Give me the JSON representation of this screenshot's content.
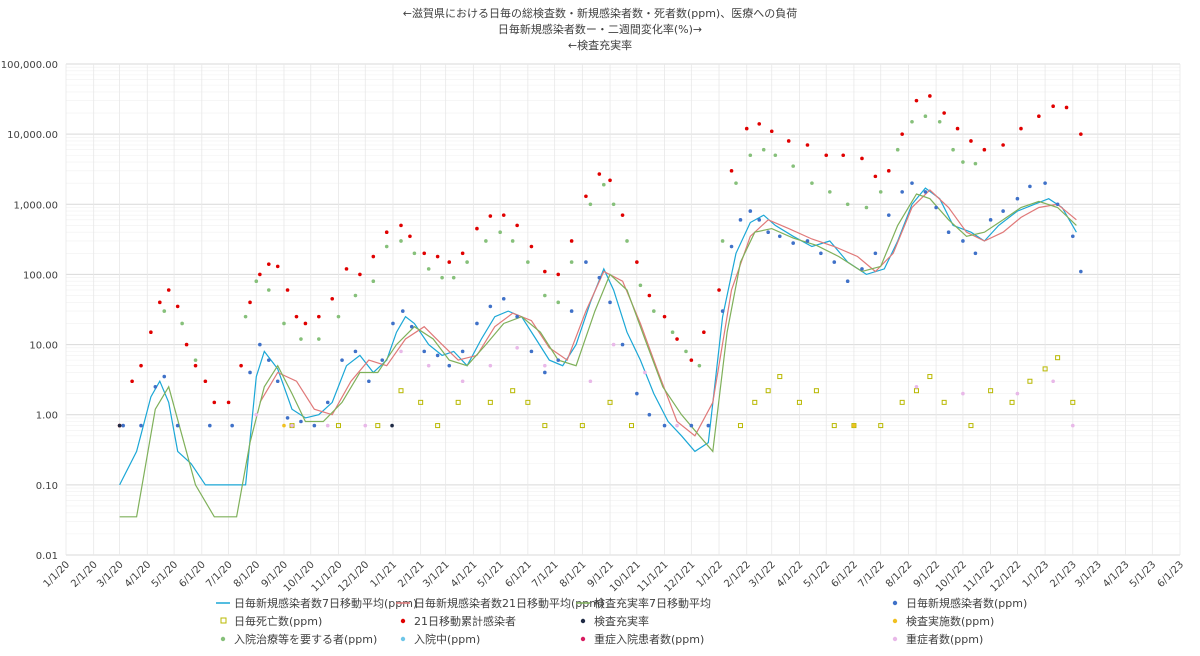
{
  "chart_data": {
    "type": "line",
    "title_lines": [
      "←滋賀県における日毎の総検査数・新規感染者数・死者数(ppm)、医療への負荷",
      "日毎新規感染者数ー・二週間変化率(%)→",
      "←検査充実率"
    ],
    "y_scale": "log",
    "ylim": [
      0.01,
      100000
    ],
    "y_ticks": [
      "0.01",
      "0.10",
      "1.00",
      "10.00",
      "100.00",
      "1,000.00",
      "10,000.00",
      "100,000.00"
    ],
    "x_ticks": [
      "1/1/20",
      "2/1/20",
      "3/1/20",
      "4/1/20",
      "5/1/20",
      "6/1/20",
      "7/1/20",
      "8/1/20",
      "9/1/20",
      "10/1/20",
      "11/1/20",
      "12/1/20",
      "1/1/21",
      "2/1/21",
      "3/1/21",
      "4/1/21",
      "5/1/21",
      "6/1/21",
      "7/1/21",
      "8/1/21",
      "9/1/21",
      "10/1/21",
      "11/1/21",
      "12/1/21",
      "1/1/22",
      "2/1/22",
      "3/1/22",
      "4/1/22",
      "5/1/22",
      "6/1/22",
      "7/1/22",
      "8/1/22",
      "9/1/22",
      "10/1/22",
      "11/1/22",
      "12/1/22",
      "1/1/23",
      "2/1/23",
      "3/1/23",
      "4/1/23",
      "5/1/23",
      "6/1/23"
    ],
    "grid": true,
    "legend_position": "bottom",
    "series": [
      {
        "name": "日毎新規感染者数7日移動平均(ppm)",
        "style": "line",
        "color": "#1ba7d6",
        "x": [
          "2020-03-01",
          "2020-03-20",
          "2020-04-05",
          "2020-04-15",
          "2020-04-25",
          "2020-05-05",
          "2020-05-20",
          "2020-06-05",
          "2020-07-20",
          "2020-08-01",
          "2020-08-10",
          "2020-08-25",
          "2020-09-10",
          "2020-09-25",
          "2020-10-10",
          "2020-10-25",
          "2020-11-10",
          "2020-11-25",
          "2020-12-10",
          "2020-12-25",
          "2021-01-05",
          "2021-01-15",
          "2021-01-25",
          "2021-02-10",
          "2021-02-25",
          "2021-03-10",
          "2021-03-25",
          "2021-04-10",
          "2021-04-25",
          "2021-05-10",
          "2021-05-25",
          "2021-06-10",
          "2021-06-25",
          "2021-07-10",
          "2021-07-25",
          "2021-08-10",
          "2021-08-25",
          "2021-09-05",
          "2021-09-20",
          "2021-10-05",
          "2021-10-20",
          "2021-11-05",
          "2021-11-20",
          "2021-12-05",
          "2021-12-20",
          "2022-01-05",
          "2022-01-20",
          "2022-02-05",
          "2022-02-20",
          "2022-03-05",
          "2022-03-25",
          "2022-04-15",
          "2022-05-05",
          "2022-05-25",
          "2022-06-15",
          "2022-07-05",
          "2022-07-20",
          "2022-08-05",
          "2022-08-20",
          "2022-09-05",
          "2022-09-20",
          "2022-10-10",
          "2022-10-25",
          "2022-11-10",
          "2022-12-01",
          "2022-12-20",
          "2023-01-05",
          "2023-01-20",
          "2023-02-05"
        ],
        "values": [
          0.1,
          0.3,
          1.8,
          3.0,
          1.5,
          0.3,
          0.2,
          0.1,
          0.1,
          3.5,
          8,
          4.5,
          1.2,
          0.9,
          1.0,
          1.5,
          5,
          7,
          4,
          6,
          15,
          25,
          20,
          10,
          7,
          8,
          5,
          12,
          25,
          30,
          25,
          12,
          6,
          5,
          10,
          40,
          120,
          60,
          15,
          6,
          2,
          0.8,
          0.5,
          0.3,
          0.4,
          25,
          200,
          550,
          700,
          500,
          350,
          250,
          300,
          150,
          100,
          120,
          300,
          1000,
          1700,
          1200,
          500,
          400,
          300,
          500,
          800,
          1000,
          1200,
          900,
          400
        ]
      },
      {
        "name": "日毎新規感染者数21日移動平均(ppm)",
        "style": "line",
        "color": "#e07979",
        "x": [
          "2020-08-05",
          "2020-08-25",
          "2020-09-15",
          "2020-10-05",
          "2020-10-25",
          "2020-11-15",
          "2020-12-05",
          "2020-12-25",
          "2021-01-15",
          "2021-02-05",
          "2021-02-25",
          "2021-03-15",
          "2021-04-05",
          "2021-04-25",
          "2021-05-15",
          "2021-06-05",
          "2021-06-25",
          "2021-07-15",
          "2021-08-05",
          "2021-08-25",
          "2021-09-15",
          "2021-10-05",
          "2021-10-25",
          "2021-11-15",
          "2021-12-05",
          "2021-12-25",
          "2022-01-15",
          "2022-02-05",
          "2022-02-25",
          "2022-03-20",
          "2022-04-15",
          "2022-05-10",
          "2022-06-05",
          "2022-06-25",
          "2022-07-15",
          "2022-08-05",
          "2022-08-25",
          "2022-09-15",
          "2022-10-05",
          "2022-10-25",
          "2022-11-15",
          "2022-12-05",
          "2022-12-25",
          "2023-01-15",
          "2023-02-05"
        ],
        "values": [
          1.5,
          4,
          3,
          1.2,
          1.0,
          3,
          6,
          5,
          12,
          18,
          10,
          6,
          7,
          18,
          28,
          22,
          9,
          6,
          30,
          110,
          80,
          20,
          4,
          0.8,
          0.5,
          1.5,
          60,
          350,
          600,
          450,
          320,
          250,
          180,
          110,
          200,
          900,
          1600,
          900,
          400,
          300,
          400,
          650,
          900,
          1000,
          600
        ]
      },
      {
        "name": "検査充実率7日移動平均",
        "style": "line",
        "color": "#7fb05a",
        "x": [
          "2020-03-01",
          "2020-03-20",
          "2020-04-10",
          "2020-04-25",
          "2020-05-10",
          "2020-05-25",
          "2020-06-15",
          "2020-07-10",
          "2020-07-25",
          "2020-08-10",
          "2020-08-25",
          "2020-09-10",
          "2020-09-25",
          "2020-10-15",
          "2020-11-05",
          "2020-11-25",
          "2020-12-15",
          "2021-01-05",
          "2021-01-25",
          "2021-02-15",
          "2021-03-05",
          "2021-03-25",
          "2021-04-15",
          "2021-05-05",
          "2021-05-25",
          "2021-06-15",
          "2021-07-05",
          "2021-07-25",
          "2021-08-15",
          "2021-09-01",
          "2021-09-20",
          "2021-10-10",
          "2021-10-30",
          "2021-11-20",
          "2021-12-10",
          "2021-12-25",
          "2022-01-10",
          "2022-01-25",
          "2022-02-10",
          "2022-03-01",
          "2022-03-25",
          "2022-04-20",
          "2022-05-15",
          "2022-06-10",
          "2022-07-01",
          "2022-07-20",
          "2022-08-10",
          "2022-08-25",
          "2022-09-15",
          "2022-10-05",
          "2022-10-25",
          "2022-11-15",
          "2022-12-05",
          "2022-12-25",
          "2023-01-15",
          "2023-02-05"
        ],
        "values": [
          0.035,
          0.035,
          1.2,
          2.5,
          0.5,
          0.1,
          0.035,
          0.035,
          0.4,
          2.5,
          5,
          2,
          0.8,
          0.8,
          1.5,
          4,
          4,
          10,
          18,
          12,
          6,
          5,
          10,
          20,
          25,
          15,
          6,
          5,
          30,
          100,
          60,
          12,
          2.5,
          1.0,
          0.5,
          0.3,
          15,
          150,
          400,
          450,
          330,
          260,
          180,
          110,
          130,
          500,
          1400,
          1200,
          600,
          350,
          400,
          600,
          900,
          1100,
          900,
          500
        ]
      },
      {
        "name": "日毎新規感染者数(ppm)",
        "style": "markers",
        "color": "#3f71c8",
        "x": [
          "2020-03-05",
          "2020-03-25",
          "2020-04-10",
          "2020-04-20",
          "2020-05-05",
          "2020-06-10",
          "2020-07-05",
          "2020-07-25",
          "2020-08-05",
          "2020-08-15",
          "2020-08-25",
          "2020-09-05",
          "2020-09-20",
          "2020-10-05",
          "2020-10-20",
          "2020-11-05",
          "2020-11-20",
          "2020-12-05",
          "2020-12-20",
          "2021-01-01",
          "2021-01-12",
          "2021-01-22",
          "2021-02-05",
          "2021-02-20",
          "2021-03-05",
          "2021-03-20",
          "2021-04-05",
          "2021-04-20",
          "2021-05-05",
          "2021-05-20",
          "2021-06-05",
          "2021-06-20",
          "2021-07-05",
          "2021-07-20",
          "2021-08-05",
          "2021-08-20",
          "2021-09-01",
          "2021-09-15",
          "2021-10-01",
          "2021-10-15",
          "2021-11-01",
          "2021-12-01",
          "2021-12-20",
          "2022-01-05",
          "2022-01-15",
          "2022-01-25",
          "2022-02-05",
          "2022-02-15",
          "2022-02-25",
          "2022-03-10",
          "2022-03-25",
          "2022-04-10",
          "2022-04-25",
          "2022-05-10",
          "2022-05-25",
          "2022-06-10",
          "2022-06-25",
          "2022-07-10",
          "2022-07-25",
          "2022-08-05",
          "2022-08-20",
          "2022-09-01",
          "2022-09-15",
          "2022-10-01",
          "2022-10-15",
          "2022-11-01",
          "2022-11-15",
          "2022-12-01",
          "2022-12-15",
          "2023-01-01",
          "2023-01-15",
          "2023-02-01",
          "2023-02-10"
        ],
        "values": [
          0.7,
          0.7,
          2.5,
          3.5,
          0.7,
          0.7,
          0.7,
          4,
          10,
          6,
          3,
          0.9,
          0.8,
          0.7,
          1.5,
          6,
          8,
          3,
          6,
          20,
          30,
          18,
          8,
          7,
          5,
          8,
          20,
          35,
          45,
          25,
          8,
          4,
          6,
          30,
          150,
          90,
          40,
          10,
          2,
          1,
          0.7,
          0.7,
          0.7,
          30,
          250,
          600,
          800,
          600,
          400,
          350,
          280,
          300,
          200,
          150,
          80,
          120,
          200,
          700,
          1500,
          2000,
          1500,
          900,
          400,
          300,
          200,
          600,
          800,
          1200,
          1800,
          2000,
          1000,
          350,
          110
        ]
      },
      {
        "name": "日毎死亡数(ppm)",
        "style": "squares",
        "color": "#b8b800",
        "x": [
          "2020-09-10",
          "2020-11-01",
          "2020-12-15",
          "2021-01-10",
          "2021-02-01",
          "2021-02-20",
          "2021-03-15",
          "2021-04-20",
          "2021-05-15",
          "2021-06-01",
          "2021-06-20",
          "2021-08-01",
          "2021-09-01",
          "2021-09-25",
          "2022-01-25",
          "2022-02-10",
          "2022-02-25",
          "2022-03-10",
          "2022-04-01",
          "2022-04-20",
          "2022-05-10",
          "2022-06-01",
          "2022-07-01",
          "2022-07-25",
          "2022-08-10",
          "2022-08-25",
          "2022-09-10",
          "2022-10-10",
          "2022-11-01",
          "2022-11-25",
          "2022-12-15",
          "2023-01-01",
          "2023-01-15",
          "2023-02-01"
        ],
        "values": [
          0.7,
          0.7,
          0.7,
          2.2,
          1.5,
          0.7,
          1.5,
          1.5,
          2.2,
          1.5,
          0.7,
          0.7,
          1.5,
          0.7,
          0.7,
          1.5,
          2.2,
          3.5,
          1.5,
          2.2,
          0.7,
          0.7,
          0.7,
          1.5,
          2.2,
          3.5,
          1.5,
          0.7,
          2.2,
          1.5,
          3.0,
          4.5,
          6.5,
          1.5
        ]
      },
      {
        "name": "21日移動累計感染者",
        "style": "markers",
        "color": "#e00000",
        "x": [
          "2020-03-01",
          "2020-03-15",
          "2020-03-25",
          "2020-04-05",
          "2020-04-15",
          "2020-04-25",
          "2020-05-05",
          "2020-05-15",
          "2020-05-25",
          "2020-06-05",
          "2020-06-15",
          "2020-07-01",
          "2020-07-15",
          "2020-07-25",
          "2020-08-05",
          "2020-08-15",
          "2020-08-25",
          "2020-09-05",
          "2020-09-15",
          "2020-09-25",
          "2020-10-10",
          "2020-10-25",
          "2020-11-10",
          "2020-11-25",
          "2020-12-10",
          "2020-12-25",
          "2021-01-10",
          "2021-01-20",
          "2021-02-05",
          "2021-02-20",
          "2021-03-05",
          "2021-03-20",
          "2021-04-05",
          "2021-04-20",
          "2021-05-05",
          "2021-05-20",
          "2021-06-05",
          "2021-06-20",
          "2021-07-05",
          "2021-07-20",
          "2021-08-05",
          "2021-08-20",
          "2021-09-01",
          "2021-09-15",
          "2021-10-01",
          "2021-10-15",
          "2021-11-01",
          "2021-11-15",
          "2021-12-01",
          "2021-12-15",
          "2022-01-01",
          "2022-01-15",
          "2022-02-01",
          "2022-02-15",
          "2022-03-01",
          "2022-03-20",
          "2022-04-10",
          "2022-05-01",
          "2022-05-20",
          "2022-06-10",
          "2022-06-25",
          "2022-07-10",
          "2022-07-25",
          "2022-08-10",
          "2022-08-25",
          "2022-09-10",
          "2022-09-25",
          "2022-10-10",
          "2022-10-25",
          "2022-11-15",
          "2022-12-05",
          "2022-12-25",
          "2023-01-10",
          "2023-01-25",
          "2023-02-10"
        ],
        "values": [
          0.7,
          3,
          5,
          15,
          40,
          60,
          35,
          10,
          5,
          3,
          1.5,
          1.5,
          5,
          40,
          100,
          140,
          130,
          60,
          25,
          20,
          25,
          45,
          120,
          100,
          180,
          400,
          500,
          350,
          200,
          180,
          150,
          200,
          450,
          680,
          700,
          500,
          250,
          110,
          100,
          300,
          1300,
          2700,
          2200,
          700,
          150,
          50,
          25,
          12,
          6,
          15,
          60,
          3000,
          12000,
          14000,
          11000,
          8000,
          7000,
          5000,
          5000,
          4500,
          2500,
          3000,
          10000,
          30000,
          35000,
          20000,
          12000,
          8000,
          6000,
          7000,
          12000,
          18000,
          25000,
          24000,
          10000
        ]
      },
      {
        "name": "検査充実率",
        "style": "markers",
        "color": "#1f2a44",
        "x": [
          "2020-03-01",
          "2020-12-31"
        ],
        "values": [
          0.7,
          0.7
        ]
      },
      {
        "name": "検査実施数(ppm)",
        "style": "markers",
        "color": "#f0c020",
        "x": [
          "2020-09-01",
          "2022-06-01"
        ],
        "values": [
          0.7,
          0.7
        ]
      },
      {
        "name": "入院治療等を要する者(ppm)",
        "style": "markers",
        "color": "#86c07a",
        "x": [
          "2020-04-20",
          "2020-05-10",
          "2020-05-25",
          "2020-07-20",
          "2020-08-01",
          "2020-08-15",
          "2020-09-01",
          "2020-09-20",
          "2020-10-10",
          "2020-11-01",
          "2020-11-20",
          "2020-12-10",
          "2020-12-25",
          "2021-01-10",
          "2021-01-25",
          "2021-02-10",
          "2021-02-25",
          "2021-03-10",
          "2021-03-25",
          "2021-04-15",
          "2021-05-01",
          "2021-05-15",
          "2021-06-01",
          "2021-06-20",
          "2021-07-05",
          "2021-07-20",
          "2021-08-10",
          "2021-08-25",
          "2021-09-05",
          "2021-09-20",
          "2021-10-05",
          "2021-10-20",
          "2021-11-10",
          "2021-11-25",
          "2021-12-10",
          "2022-01-05",
          "2022-01-20",
          "2022-02-05",
          "2022-02-20",
          "2022-03-05",
          "2022-03-25",
          "2022-04-15",
          "2022-05-05",
          "2022-05-25",
          "2022-06-15",
          "2022-07-01",
          "2022-07-20",
          "2022-08-05",
          "2022-08-20",
          "2022-09-05",
          "2022-09-20",
          "2022-10-01",
          "2022-10-15"
        ],
        "values": [
          30,
          20,
          6,
          25,
          80,
          60,
          20,
          12,
          12,
          25,
          50,
          80,
          250,
          300,
          200,
          120,
          90,
          90,
          150,
          300,
          400,
          300,
          150,
          50,
          40,
          150,
          1000,
          1900,
          1000,
          300,
          70,
          30,
          15,
          8,
          5,
          300,
          2000,
          5000,
          6000,
          5000,
          3500,
          2000,
          1500,
          1000,
          900,
          1500,
          6000,
          15000,
          18000,
          15000,
          6000,
          4000,
          3800
        ]
      },
      {
        "name": "入院中(ppm)",
        "style": "markers",
        "color": "#6ec6e8",
        "x": [],
        "values": []
      },
      {
        "name": "重症入院患者数(ppm)",
        "style": "markers",
        "color": "#d81b60",
        "x": [],
        "values": []
      },
      {
        "name": "重症者数(ppm)",
        "style": "markers",
        "color": "#e8b8e8",
        "x": [
          "2020-08-01",
          "2020-09-10",
          "2020-10-20",
          "2020-12-01",
          "2021-01-10",
          "2021-02-10",
          "2021-03-20",
          "2021-04-20",
          "2021-05-20",
          "2021-06-20",
          "2021-08-10",
          "2021-09-05",
          "2021-10-10",
          "2021-11-15",
          "2022-08-10",
          "2022-10-01",
          "2022-12-01",
          "2023-01-10",
          "2023-02-01"
        ],
        "values": [
          1,
          0.7,
          0.7,
          0.7,
          8,
          5,
          3,
          5,
          9,
          5,
          3,
          10,
          4,
          0.7,
          2.5,
          2,
          2,
          3,
          0.7
        ]
      }
    ]
  }
}
